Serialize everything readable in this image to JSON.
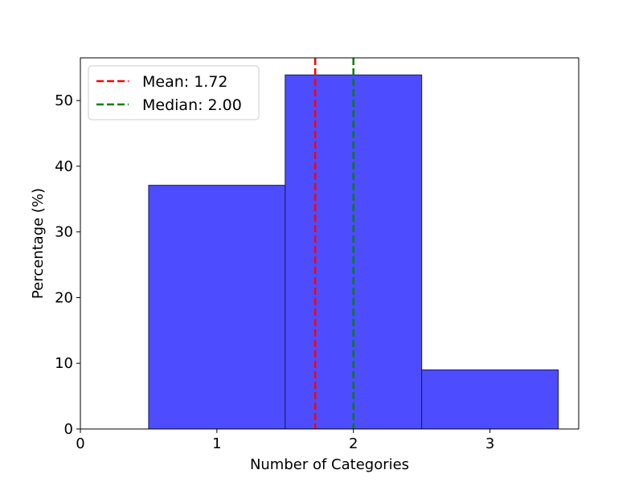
{
  "chart_data": {
    "type": "bar",
    "title": "",
    "xlabel": "Number of Categories",
    "ylabel": "Percentage (%)",
    "categories": [
      1,
      2,
      3
    ],
    "values": [
      37.1,
      53.9,
      9.0
    ],
    "bin_width": 1,
    "xlim": [
      0,
      3.65
    ],
    "ylim": [
      0,
      56.5
    ],
    "xticks": [
      0,
      1,
      2,
      3
    ],
    "yticks": [
      0,
      10,
      20,
      30,
      40,
      50
    ],
    "grid": false,
    "legend_position": "top-left",
    "bar_color": "#4d4dff",
    "bar_edge_color": "#1a1a66",
    "reference_lines": [
      {
        "label": "Mean: 1.72",
        "x": 1.72,
        "color": "#ff0000",
        "style": "dashed"
      },
      {
        "label": "Median: 2.00",
        "x": 2.0,
        "color": "#008000",
        "style": "dashed"
      }
    ]
  }
}
